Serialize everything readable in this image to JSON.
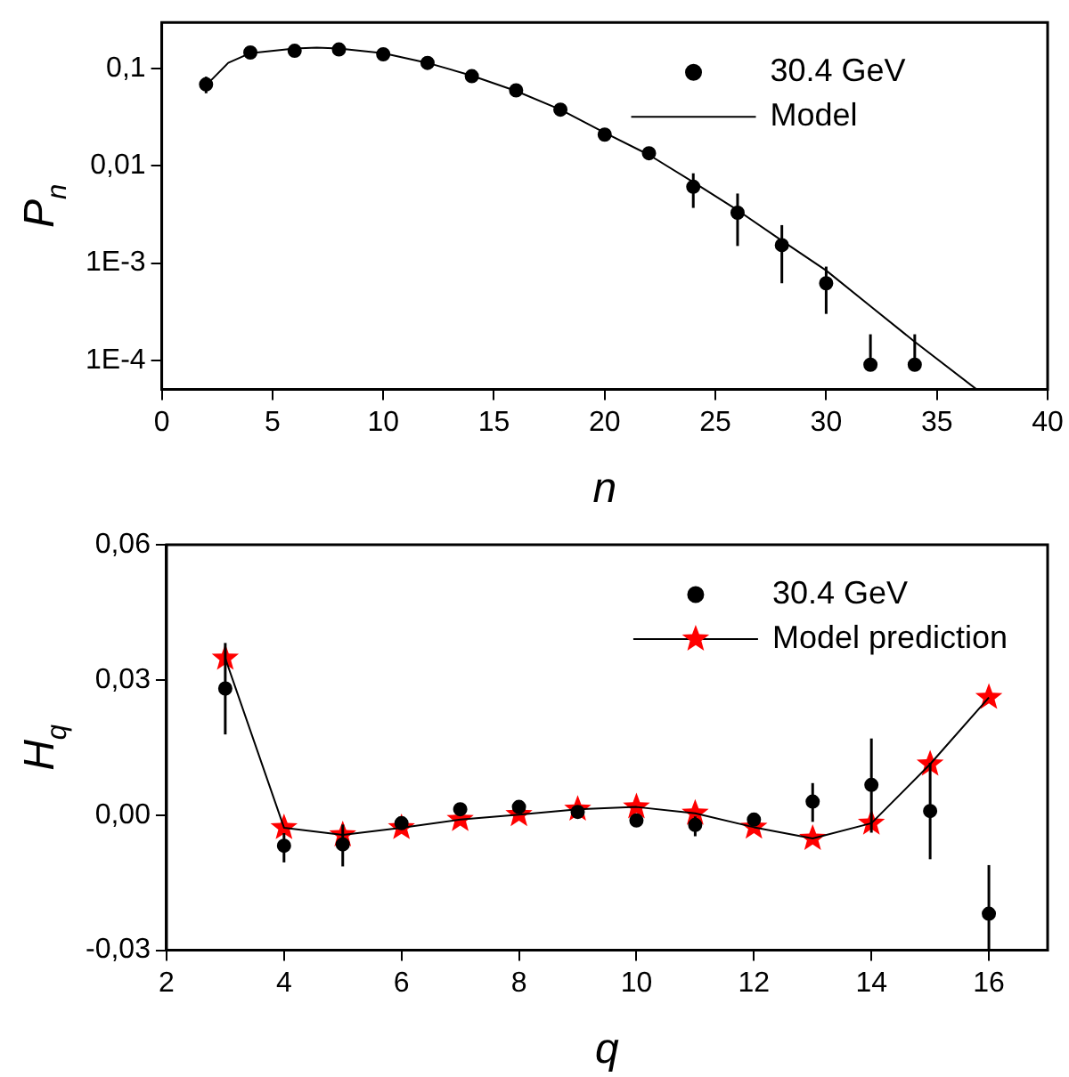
{
  "chart_data": [
    {
      "type": "scatter",
      "xlabel": "n",
      "ylabel": "P$_{n}$",
      "log": "y",
      "grid": false,
      "legend": "top right",
      "xlim": [
        0,
        40
      ],
      "xticks": [
        0,
        5,
        10,
        15,
        20,
        25,
        30,
        35,
        40
      ],
      "ylim": [
        5e-05,
        0.3
      ],
      "yticks": [
        {
          "value": 0.1,
          "label": "0,1"
        },
        {
          "value": 0.01,
          "label": "0,01"
        },
        {
          "value": 0.001,
          "label": "1E-3"
        },
        {
          "value": 0.0001,
          "label": "1E-4"
        }
      ],
      "series": [
        {
          "name": "30.4 GeV",
          "type": "scatter",
          "marker": "circle",
          "color": "#000000",
          "x": [
            2,
            4,
            6,
            8,
            10,
            12,
            14,
            16,
            18,
            20,
            22,
            24,
            26,
            28,
            30,
            32,
            34
          ],
          "values": [
            0.069,
            0.147,
            0.153,
            0.158,
            0.141,
            0.115,
            0.084,
            0.06,
            0.038,
            0.021,
            0.0135,
            0.0061,
            0.0033,
            0.00153,
            0.00062,
            9e-05,
            9e-05
          ],
          "errors": [
            [
              0.056,
              0.083
            ],
            null,
            null,
            null,
            null,
            null,
            null,
            null,
            null,
            [
              0.019,
              0.024
            ],
            [
              0.012,
              0.015
            ],
            [
              0.0037,
              0.0084
            ],
            [
              0.0015,
              0.0052
            ],
            [
              0.00062,
              0.00246
            ],
            [
              0.0003,
              0.00092
            ],
            [
              9e-05,
              0.000185
            ],
            [
              9e-05,
              0.000185
            ]
          ]
        },
        {
          "name": "Model",
          "type": "line",
          "marker": "none",
          "color": "#000000",
          "x": [
            2.2,
            3,
            4,
            6,
            7,
            8,
            10,
            12,
            14,
            16,
            18,
            20,
            22,
            24,
            26,
            28,
            30,
            32,
            34,
            36.8
          ],
          "values": [
            0.075,
            0.115,
            0.145,
            0.162,
            0.165,
            0.162,
            0.145,
            0.115,
            0.085,
            0.059,
            0.038,
            0.022,
            0.013,
            0.0068,
            0.0035,
            0.0017,
            0.00084,
            0.00036,
            0.000155,
            5e-05
          ]
        }
      ]
    },
    {
      "type": "scatter",
      "xlabel": "q",
      "ylabel": "H$_{q}$",
      "grid": false,
      "legend": "top right",
      "xlim": [
        2,
        17
      ],
      "xticks": [
        2,
        4,
        6,
        8,
        10,
        12,
        14,
        16
      ],
      "ylim": [
        -0.03,
        0.06
      ],
      "yticks": [
        {
          "value": -0.03,
          "label": "-0,03"
        },
        {
          "value": 0,
          "label": "0,00"
        },
        {
          "value": 0.03,
          "label": "0,03"
        },
        {
          "value": 0.06,
          "label": "0,06"
        }
      ],
      "series": [
        {
          "name": "30.4 GeV",
          "type": "scatter",
          "marker": "circle",
          "color": "#000000",
          "x": [
            3,
            4,
            5,
            6,
            7,
            8,
            9,
            10,
            11,
            12,
            13,
            14,
            15,
            16
          ],
          "values": [
            0.0281,
            -0.0068,
            -0.0065,
            -0.0018,
            0.0013,
            0.0018,
            0.0007,
            -0.0012,
            -0.0022,
            -0.001,
            0.003,
            0.0067,
            0.0009,
            -0.0219
          ],
          "errors": [
            [
              0.0179,
              0.0382
            ],
            [
              -0.0105,
              -0.004
            ],
            [
              -0.0114,
              -0.0021
            ],
            null,
            null,
            null,
            null,
            null,
            [
              -0.0047,
              -0.0003
            ],
            null,
            [
              -0.0015,
              0.0071
            ],
            [
              -0.0039,
              0.017
            ],
            [
              -0.0098,
              0.0116
            ],
            [
              -0.03,
              -0.0111
            ]
          ]
        },
        {
          "name": "Model prediction",
          "type": "line",
          "marker": "star",
          "color": "#ff0000",
          "x": [
            3,
            4,
            5,
            6,
            7,
            8,
            9,
            10,
            11,
            12,
            13,
            14,
            15,
            16
          ],
          "values": [
            0.0348,
            -0.0028,
            -0.0044,
            -0.0028,
            -0.001,
            0.0001,
            0.0013,
            0.0018,
            0.0004,
            -0.0027,
            -0.0052,
            -0.0018,
            0.0113,
            0.0261
          ]
        }
      ]
    }
  ]
}
